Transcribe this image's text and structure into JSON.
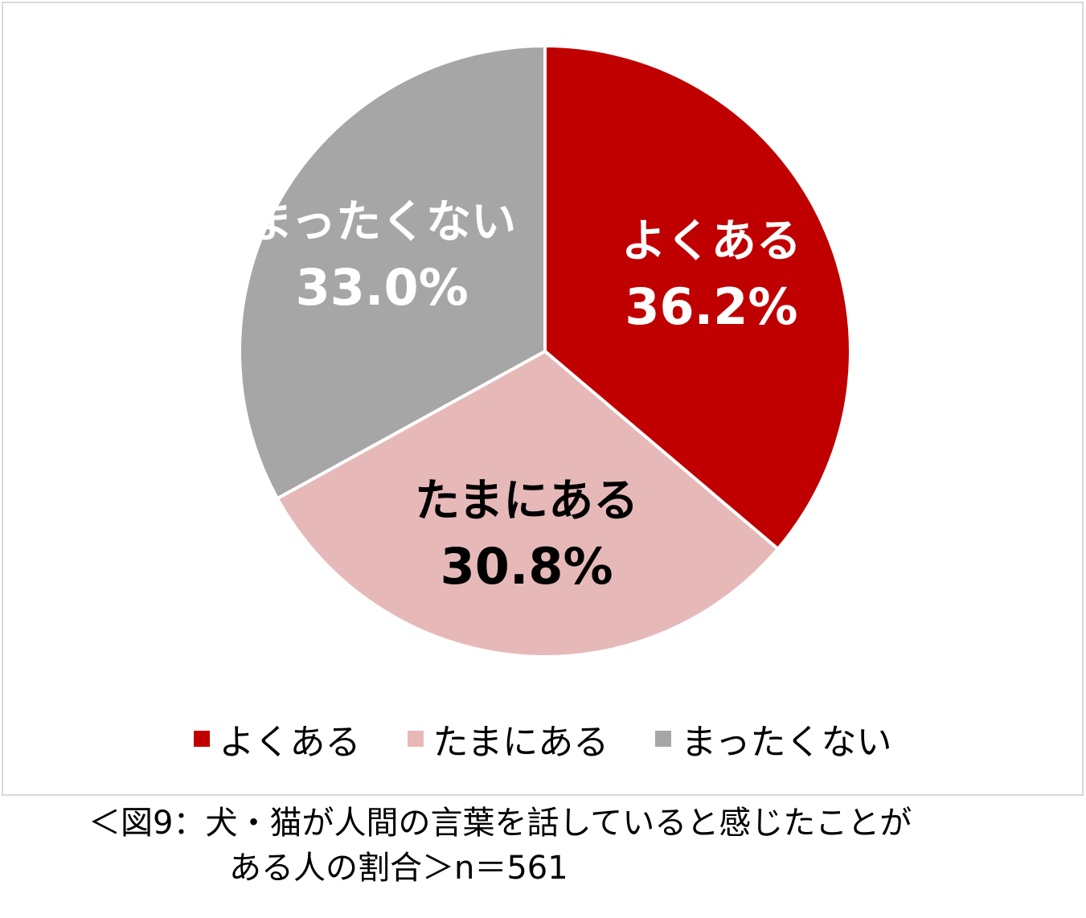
{
  "chart_data": {
    "type": "pie",
    "categories": [
      "よくある",
      "たまにある",
      "まったくない"
    ],
    "values": [
      36.2,
      30.8,
      33.0
    ],
    "value_labels": [
      "36.2%",
      "30.8%",
      "33.0%"
    ],
    "colors": [
      "#c00000",
      "#e6b9b8",
      "#a6a6a6"
    ],
    "label_colors": [
      "#ffffff",
      "#000000",
      "#ffffff"
    ],
    "start_angle_deg": 0,
    "direction": "clockwise",
    "legend_position": "bottom",
    "legend": [
      "よくある",
      "たまにある",
      "まったくない"
    ]
  },
  "caption": {
    "line1": "＜図9：犬・猫が人間の言葉を話していると感じたことが",
    "line2": "ある人の割合＞n＝561"
  }
}
